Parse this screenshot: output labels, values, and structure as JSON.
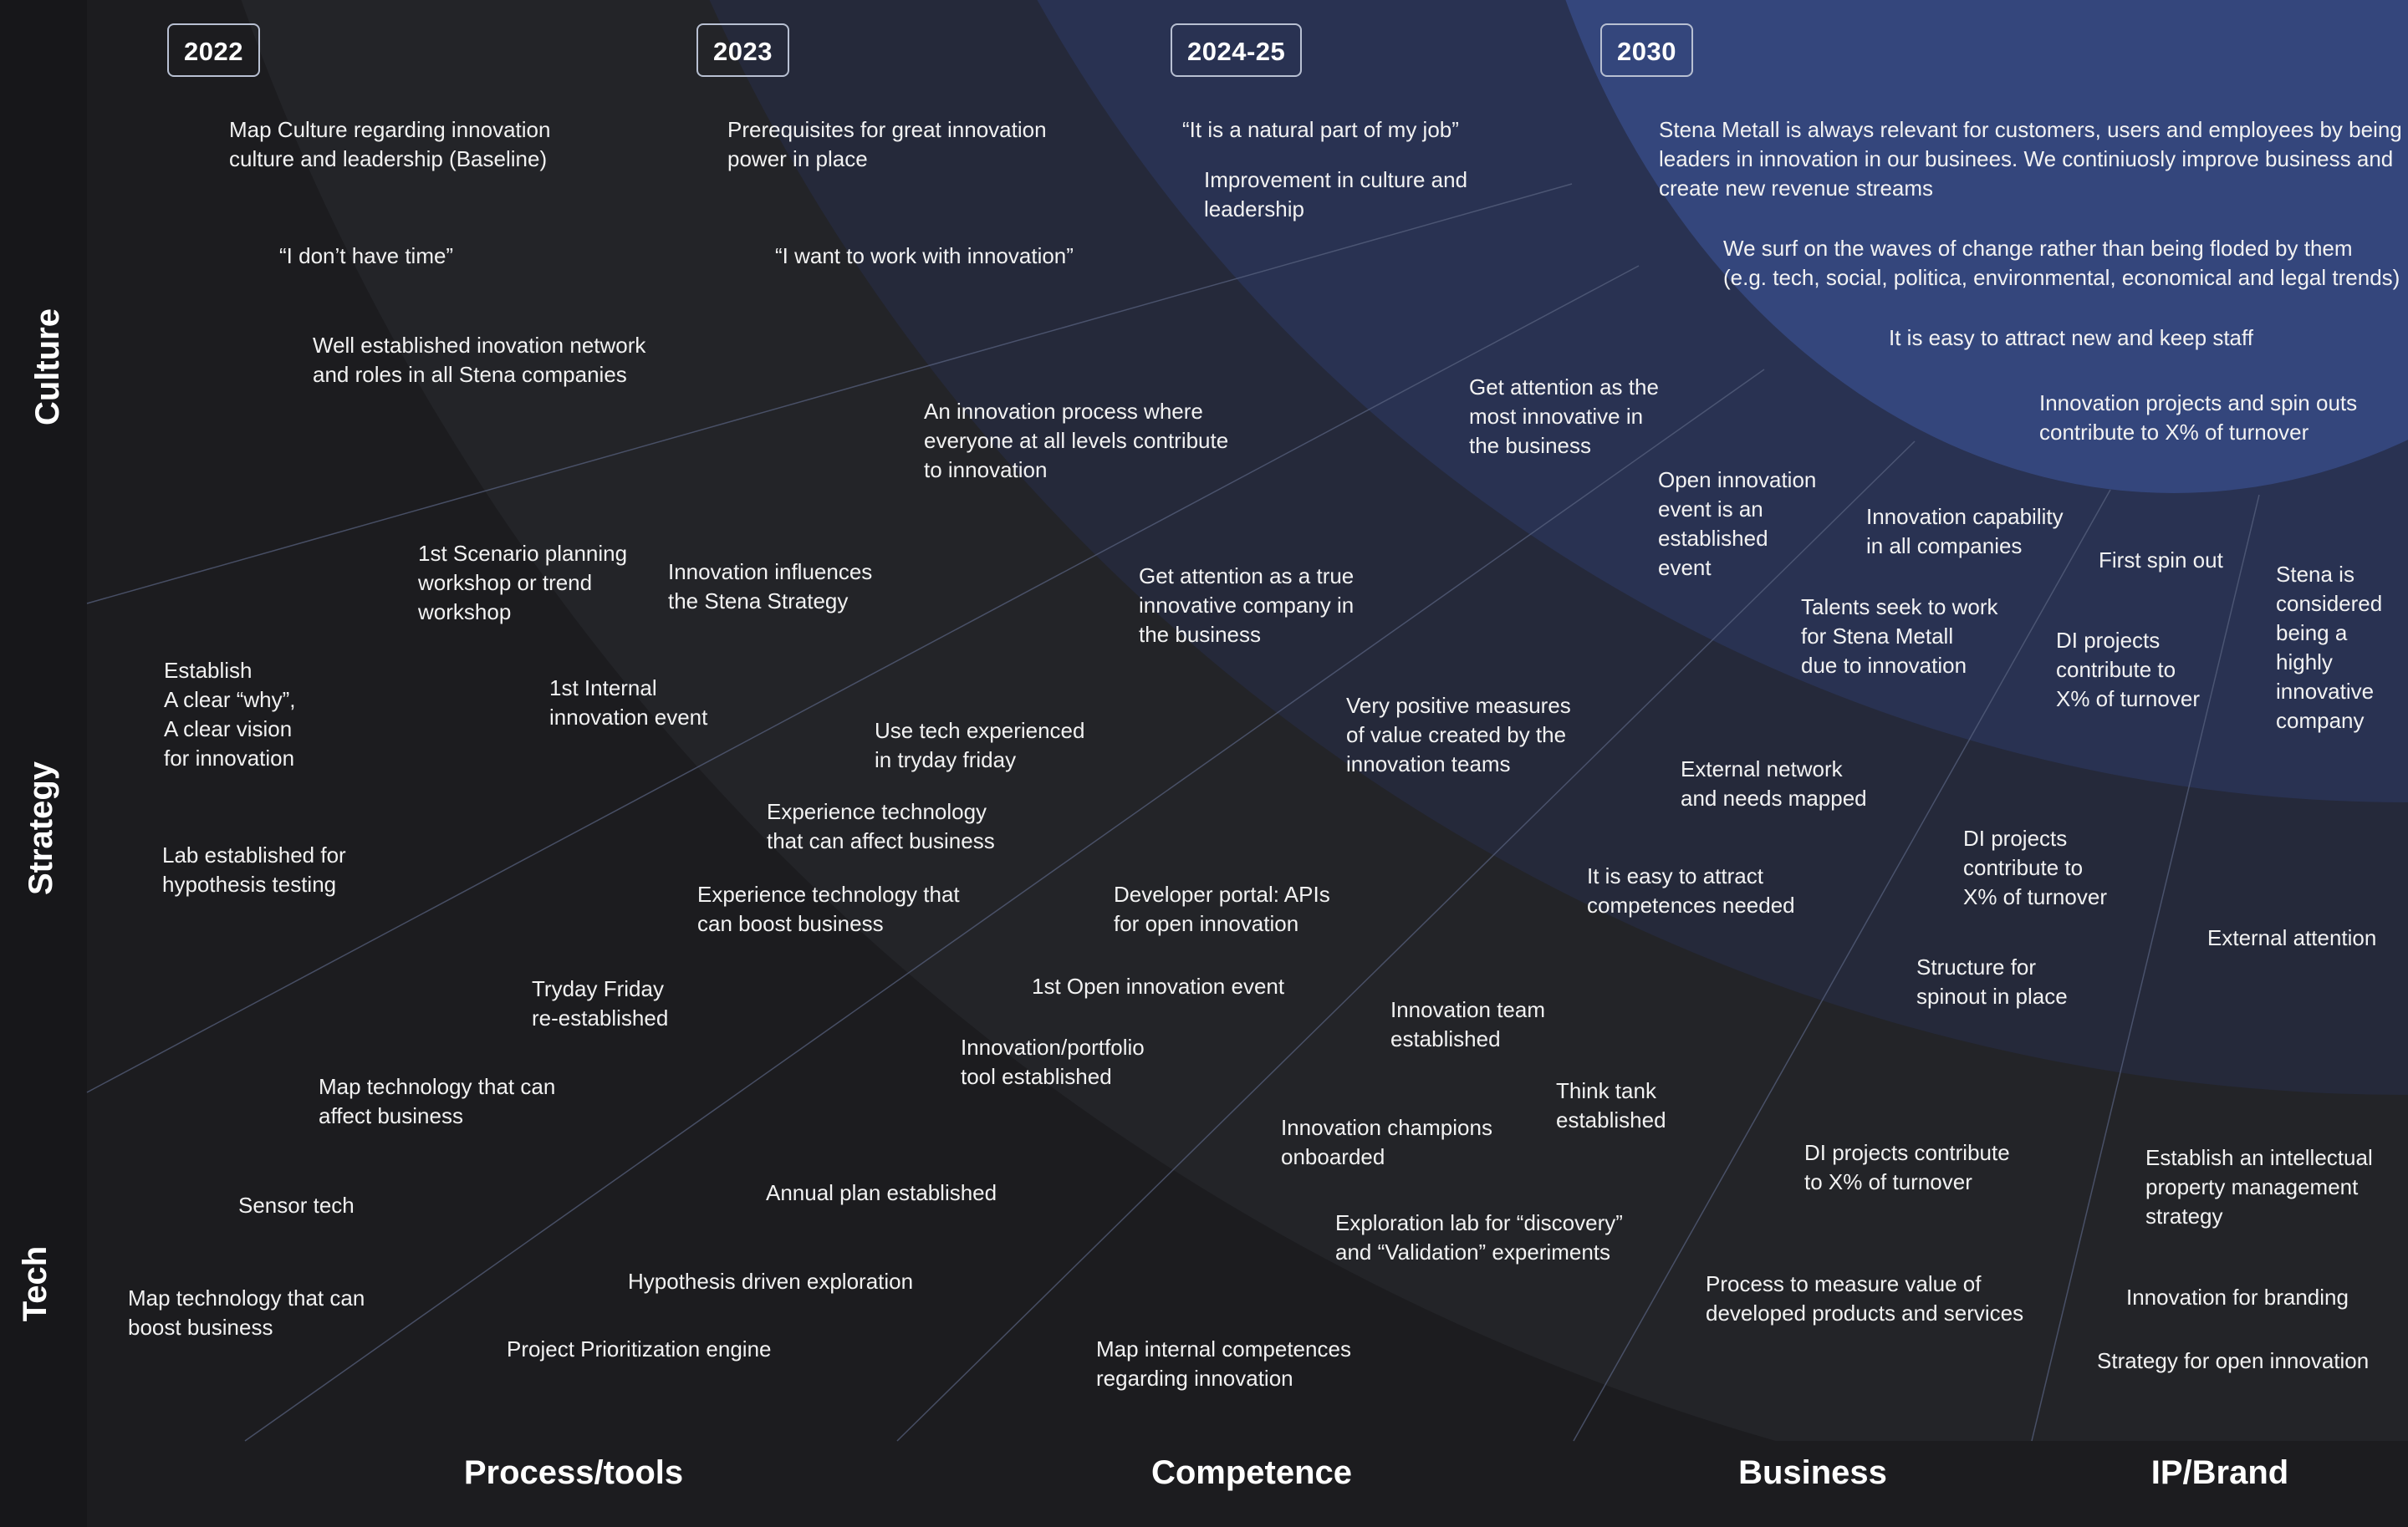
{
  "years": [
    "2022",
    "2023",
    "2024-25",
    "2030"
  ],
  "row_labels": [
    "Culture",
    "Strategy",
    "Tech"
  ],
  "column_labels": [
    "Process/tools",
    "Competence",
    "Business",
    "IP/Brand"
  ],
  "items": [
    "Map Culture regarding innovation\nculture and leadership (Baseline)",
    "“I don’t have time”",
    "Well established inovation network\nand roles in all Stena companies",
    "Prerequisites for great innovation\npower in place",
    "“I want to work with innovation”",
    "“It is a natural part of my job”",
    "Improvement in culture and\nleadership",
    "Stena Metall is always relevant for customers, users and employees by being\nleaders in innovation in our businees. We continiuosly improve business and\ncreate new revenue streams",
    "We surf on the waves of change rather than being floded by them\n(e.g. tech, social, politica, environmental, economical and legal trends)",
    "It is easy to attract new and keep staff",
    "Innovation projects and spin outs\ncontribute to X% of turnover",
    "An innovation process where\neveryone at all levels contribute\nto innovation",
    "Get attention as the\nmost innovative in\nthe business",
    "1st Scenario planning\nworkshop or trend\nworkshop",
    "Innovation influences\nthe Stena Strategy",
    "Open innovation\nevent is an\nestablished\nevent",
    "Innovation capability\nin all companies",
    "First spin out",
    "Stena is\nconsidered\nbeing a\nhighly\ninnovative\ncompany",
    "Establish\nA clear “why”,\nA clear vision\nfor innovation",
    "1st Internal\ninnovation event",
    "Get attention as a true\ninnovative company in\nthe business",
    "Talents seek to work\nfor Stena Metall\ndue to innovation",
    "DI projects\ncontribute to\nX% of turnover",
    "Use tech experienced\nin tryday friday",
    "Very positive measures\nof value created by the\ninnovation teams",
    "External network\nand needs mapped",
    "Experience technology\nthat can affect business",
    "Lab established for\nhypothesis testing",
    "DI projects\ncontribute to\nX% of turnover",
    "Experience technology that\ncan boost business",
    "Developer portal: APIs\nfor open innovation",
    "It is easy to attract\ncompetences needed",
    "External attention",
    "Structure for\nspinout in place",
    "Tryday Friday\nre-established",
    "1st Open innovation event",
    "Innovation team\nestablished",
    "Innovation/portfolio\ntool established",
    "Map technology that can\naffect business",
    "Think tank\nestablished",
    "Innovation champions\nonboarded",
    "DI projects contribute\nto X% of turnover",
    "Establish an intellectual\nproperty management\nstrategy",
    "Sensor tech",
    "Annual plan established",
    "Exploration lab for “discovery”\nand “Validation” experiments",
    "Hypothesis driven exploration",
    "Process to measure value of\ndeveloped products and services",
    "Innovation for branding",
    "Map technology that can\nboost business",
    "Project Prioritization engine",
    "Map internal competences\nregarding innovation",
    "Strategy for open innovation"
  ],
  "colors": {
    "background": "#1c1c1f",
    "left_bar": "#17171a",
    "ring_2022": "#232428",
    "ring_2023": "#25293a",
    "ring_2024": "#293252",
    "ring_2030": "#34467c",
    "text": "#f2f2f2"
  }
}
